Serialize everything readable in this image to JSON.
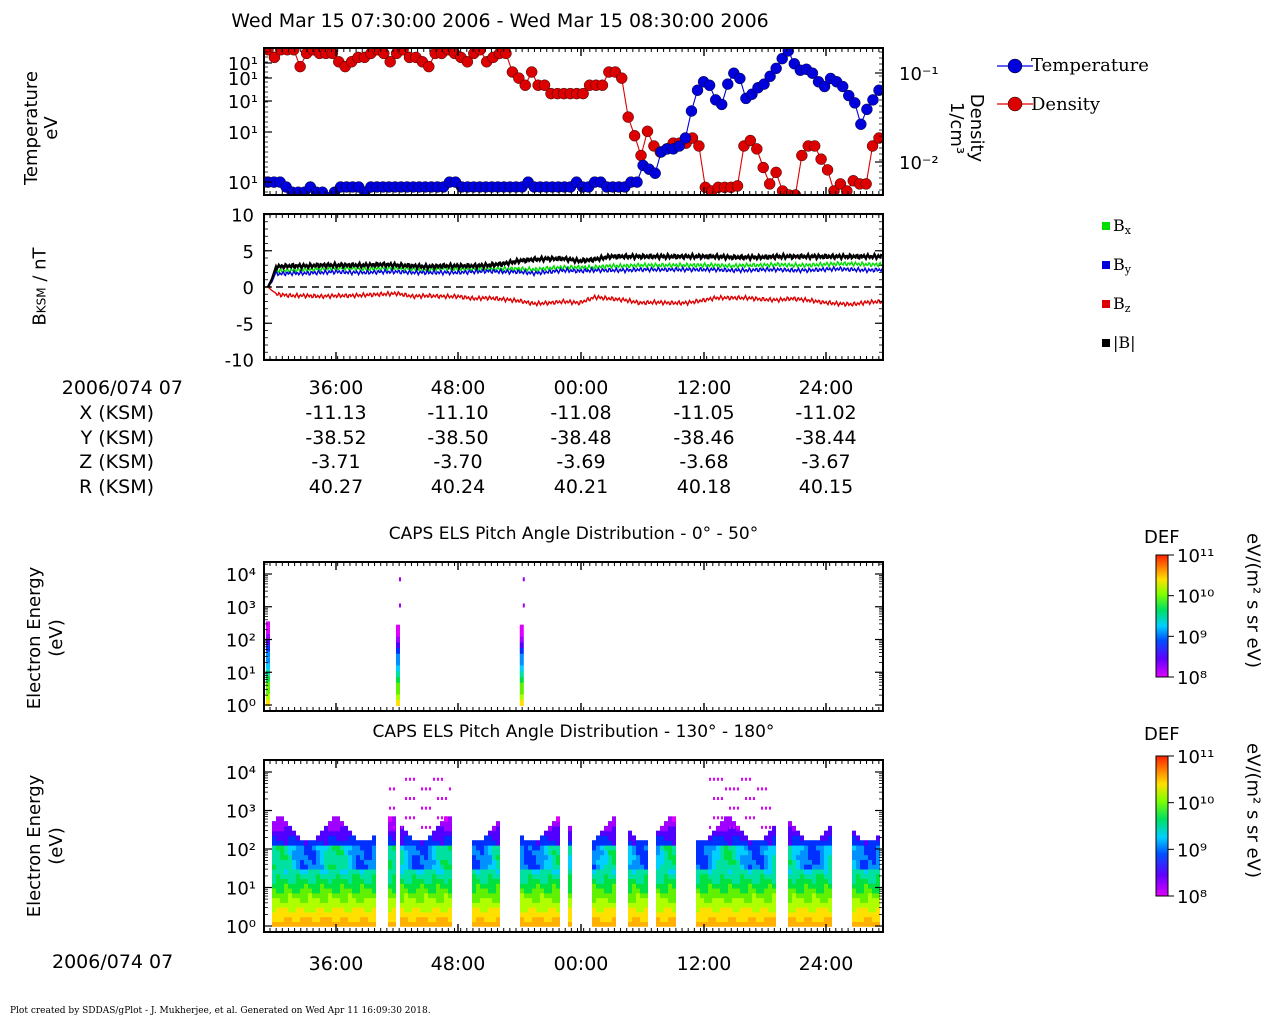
{
  "header": {
    "title": "Wed Mar 15 07:30:00 2006 - Wed Mar 15 08:30:00 2006"
  },
  "footer": {
    "credit": "Plot created by SDDAS/gPlot - J. Mukherjee, et al.  Generated on Wed Apr 11 16:09:30 2018."
  },
  "colors": {
    "temperature": "#0000dd",
    "density": "#dd0000",
    "bx": "#00dd00",
    "by": "#0000dd",
    "bz": "#dd0000",
    "btot": "#000000"
  },
  "ephemeris": {
    "time_label": "2006/074 07",
    "ticks": [
      "36:00",
      "48:00",
      "00:00",
      "12:00",
      "24:00"
    ],
    "rows": [
      {
        "label": "X (KSM)",
        "values": [
          "-11.13",
          "-11.10",
          "-11.08",
          "-11.05",
          "-11.02"
        ]
      },
      {
        "label": "Y (KSM)",
        "values": [
          "-38.52",
          "-38.50",
          "-38.48",
          "-38.46",
          "-38.44"
        ]
      },
      {
        "label": "Z (KSM)",
        "values": [
          "-3.71",
          "-3.70",
          "-3.69",
          "-3.68",
          "-3.67"
        ]
      },
      {
        "label": "R (KSM)",
        "values": [
          "40.27",
          "40.24",
          "40.21",
          "40.18",
          "40.15"
        ]
      }
    ]
  },
  "bottom_axis": {
    "time_label": "2006/074 07",
    "ticks": [
      "36:00",
      "48:00",
      "00:00",
      "12:00",
      "24:00"
    ]
  },
  "spectrogram_colorbar": {
    "title": "DEF",
    "unit": "eV/(m² s sr eV)"
  },
  "chart_data": [
    {
      "type": "scatter",
      "id": "temperature-density",
      "ylabel": "Temperature eV",
      "y2label": "Density 1/cm³",
      "yticks": [
        "10¹",
        "10¹",
        "10¹",
        "10¹",
        "10¹"
      ],
      "y2ticks": [
        "10⁻¹",
        "10⁻²"
      ],
      "y2scale": "log",
      "legend_position": "right",
      "series": [
        {
          "name": "Temperature",
          "axis": "left",
          "values": [
            15,
            15,
            15,
            14,
            13,
            13,
            13,
            14,
            13,
            13,
            12,
            13,
            14,
            14,
            14,
            14,
            13,
            14,
            14,
            14,
            14,
            14,
            14,
            14,
            14,
            14,
            14,
            14,
            14,
            14,
            15,
            15,
            14,
            14,
            14,
            14,
            14,
            14,
            14,
            14,
            14,
            14,
            14,
            15,
            14,
            14,
            14,
            14,
            14,
            14,
            14,
            15,
            14,
            14,
            15,
            15,
            14,
            14,
            14,
            14,
            15,
            15,
            19,
            18,
            17,
            23,
            24,
            24,
            25,
            28,
            41,
            55,
            62,
            59,
            48,
            45,
            60,
            70,
            65,
            49,
            52,
            57,
            60,
            67,
            75,
            86,
            96,
            80,
            73,
            74,
            70,
            62,
            58,
            65,
            62,
            58,
            51,
            46,
            34,
            42,
            48,
            55
          ]
        },
        {
          "name": "Density",
          "axis": "right",
          "values": [
            0.13,
            0.11,
            0.13,
            0.13,
            0.13,
            0.09,
            0.12,
            0.13,
            0.12,
            0.12,
            0.12,
            0.1,
            0.09,
            0.1,
            0.11,
            0.11,
            0.12,
            0.13,
            0.12,
            0.1,
            0.12,
            0.13,
            0.11,
            0.11,
            0.1,
            0.09,
            0.12,
            0.12,
            0.13,
            0.12,
            0.11,
            0.1,
            0.12,
            0.13,
            0.1,
            0.11,
            0.12,
            0.12,
            0.08,
            0.07,
            0.06,
            0.08,
            0.06,
            0.06,
            0.05,
            0.05,
            0.05,
            0.05,
            0.05,
            0.05,
            0.06,
            0.06,
            0.06,
            0.08,
            0.08,
            0.07,
            0.03,
            0.02,
            0.013,
            0.022,
            0.016,
            0.014,
            0.015,
            0.017,
            0.017,
            0.017,
            0.019,
            0.016,
            0.0065,
            0.006,
            0.0065,
            0.0065,
            0.0065,
            0.0067,
            0.016,
            0.018,
            0.015,
            0.01,
            0.007,
            0.009,
            0.006,
            0.0055,
            0.0055,
            0.013,
            0.016,
            0.016,
            0.012,
            0.0095,
            0.006,
            0.007,
            0.006,
            0.0075,
            0.007,
            0.007,
            0.016,
            0.019
          ]
        }
      ]
    },
    {
      "type": "line",
      "id": "magnetic-field",
      "ylabel": "B_KSM / nT",
      "ylabel_main": "B",
      "ylabel_sub": "KSM",
      "ylabel_tail": " / nT",
      "ylim": [
        -10,
        10
      ],
      "yticks": [
        "10",
        "5",
        "0",
        "-5",
        "-10"
      ],
      "legend": [
        "B_x",
        "B_y",
        "B_z",
        "|B|"
      ],
      "series": [
        {
          "name": "B_x",
          "values": [
            2.2,
            2.3,
            2.4,
            2.5,
            2.6,
            2.6,
            2.5,
            2.6,
            2.6,
            2.5,
            2.4,
            2.6,
            2.5,
            2.5,
            2.5,
            2.5,
            2.5,
            2.4,
            2.6,
            2.7,
            2.7,
            2.7,
            2.9,
            2.9,
            3.0,
            3.0,
            3.0,
            3.0,
            3.0,
            3.0,
            2.9,
            3.0,
            3.0,
            3.1,
            3.0,
            3.0,
            3.1,
            3.2,
            3.2,
            3.1,
            3.1
          ]
        },
        {
          "name": "B_y",
          "values": [
            1.8,
            1.9,
            1.9,
            2.0,
            2.1,
            2.0,
            2.0,
            2.1,
            2.1,
            2.0,
            2.0,
            2.0,
            2.0,
            2.1,
            2.2,
            2.1,
            2.1,
            1.9,
            2.1,
            2.3,
            2.2,
            2.3,
            2.3,
            2.3,
            2.4,
            2.4,
            2.4,
            2.4,
            2.4,
            2.4,
            2.3,
            2.3,
            2.4,
            2.4,
            2.3,
            2.3,
            2.4,
            2.5,
            2.4,
            2.3,
            2.4
          ]
        },
        {
          "name": "B_z",
          "values": [
            -1.0,
            -1.2,
            -1.2,
            -1.3,
            -1.2,
            -1.2,
            -1.1,
            -1.0,
            -0.9,
            -1.3,
            -1.2,
            -1.3,
            -1.3,
            -1.6,
            -1.5,
            -1.7,
            -1.9,
            -2.3,
            -2.2,
            -2.0,
            -2.2,
            -1.4,
            -1.6,
            -1.8,
            -2.2,
            -2.1,
            -2.2,
            -2.2,
            -1.9,
            -1.5,
            -1.5,
            -1.5,
            -1.7,
            -1.8,
            -1.6,
            -1.8,
            -2.1,
            -2.3,
            -2.4,
            -2.1,
            -2.0
          ]
        },
        {
          "name": "|B|",
          "values": [
            2.8,
            2.9,
            2.9,
            3.0,
            3.0,
            3.0,
            3.0,
            3.1,
            3.0,
            2.9,
            2.8,
            2.9,
            2.9,
            2.9,
            3.0,
            3.2,
            3.6,
            3.8,
            3.9,
            3.9,
            3.6,
            3.8,
            4.2,
            4.2,
            4.2,
            4.2,
            4.2,
            4.2,
            4.2,
            4.2,
            4.1,
            4.1,
            4.1,
            4.2,
            4.2,
            4.2,
            4.2,
            4.2,
            4.2,
            4.2,
            4.2
          ]
        }
      ]
    },
    {
      "type": "heatmap",
      "id": "spectrogram-0-50",
      "title": "CAPS ELS Pitch Angle Distribution - 0° - 50°",
      "ylabel": "Electron Energy (eV)",
      "ylabel_line1": "Electron Energy",
      "ylabel_line2": "(eV)",
      "yscale": "log",
      "ylim": [
        1,
        10000
      ],
      "yticks": [
        "10⁴",
        "10³",
        "10²",
        "10¹",
        "10⁰"
      ],
      "zlim": [
        100000000,
        100000000000
      ],
      "colorbar_ticks": [
        "10¹¹",
        "10¹⁰",
        "10⁹",
        "10⁸"
      ],
      "bursts_at_fraction_of_time": [
        0.0,
        0.21,
        0.41
      ]
    },
    {
      "type": "heatmap",
      "id": "spectrogram-130-180",
      "title": "CAPS ELS Pitch Angle Distribution - 130° - 180°",
      "ylabel": "Electron Energy (eV)",
      "ylabel_line1": "Electron Energy",
      "ylabel_line2": "(eV)",
      "yscale": "log",
      "ylim": [
        1,
        10000
      ],
      "yticks": [
        "10⁴",
        "10³",
        "10²",
        "10¹",
        "10⁰"
      ],
      "zlim": [
        100000000,
        100000000000
      ],
      "colorbar_ticks": [
        "10¹¹",
        "10¹⁰",
        "10⁹",
        "10⁸"
      ],
      "data_gaps_fraction_of_time": [
        [
          0.0,
          0.01
        ],
        [
          0.105,
          0.11
        ],
        [
          0.18,
          0.2
        ],
        [
          0.208,
          0.215
        ],
        [
          0.3,
          0.335
        ],
        [
          0.38,
          0.41
        ],
        [
          0.48,
          0.49
        ],
        [
          0.5,
          0.53
        ],
        [
          0.565,
          0.59
        ],
        [
          0.62,
          0.63
        ],
        [
          0.665,
          0.7
        ],
        [
          0.83,
          0.85
        ],
        [
          0.92,
          0.95
        ]
      ]
    }
  ]
}
